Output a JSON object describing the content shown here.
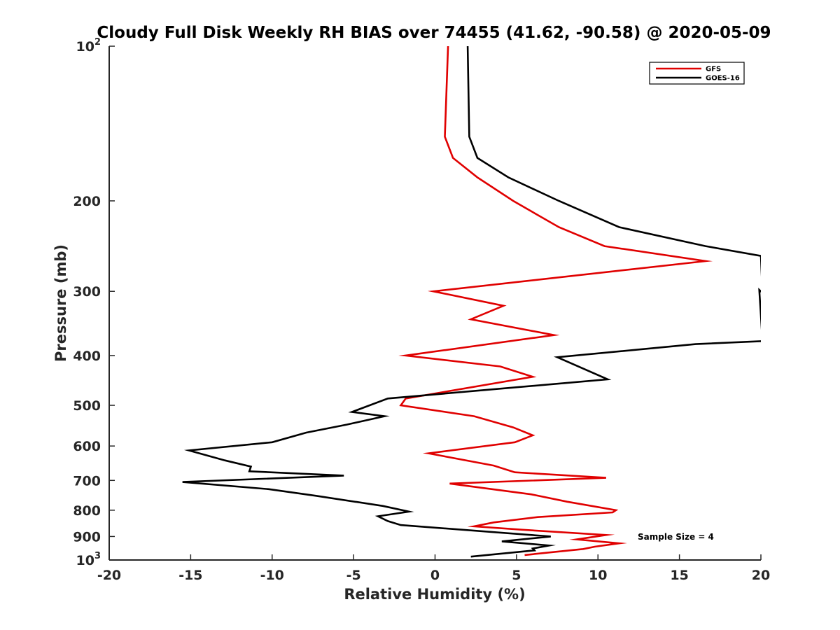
{
  "chart_data": {
    "type": "line",
    "title": "Cloudy Full Disk Weekly RH BIAS over 74455 (41.62, -90.58) @ 2020-05-09",
    "xlabel": "Relative Humidity (%)",
    "ylabel": "Pressure (mb)",
    "xlim": [
      -20,
      20
    ],
    "ylim": [
      100,
      1000
    ],
    "y_scale": "log",
    "y_reversed": true,
    "x_ticks": [
      "-20",
      "-15",
      "-10",
      "-5",
      "0",
      "5",
      "10",
      "15",
      "20"
    ],
    "y_ticks": [
      {
        "value": 100,
        "base": "10",
        "exp": "2"
      },
      {
        "value": 200,
        "base": "200",
        "exp": ""
      },
      {
        "value": 300,
        "base": "300",
        "exp": ""
      },
      {
        "value": 400,
        "base": "400",
        "exp": ""
      },
      {
        "value": 500,
        "base": "500",
        "exp": ""
      },
      {
        "value": 600,
        "base": "600",
        "exp": ""
      },
      {
        "value": 700,
        "base": "700",
        "exp": ""
      },
      {
        "value": 800,
        "base": "800",
        "exp": ""
      },
      {
        "value": 900,
        "base": "900",
        "exp": ""
      },
      {
        "value": 1000,
        "base": "10",
        "exp": "3"
      }
    ],
    "grid": false,
    "legend_position": "top-right",
    "annotation": "Sample Size = 4",
    "series": [
      {
        "name": "GFS",
        "color": "#e00000",
        "points": [
          [
            0.8,
            100
          ],
          [
            0.6,
            150
          ],
          [
            1.1,
            165
          ],
          [
            2.6,
            180
          ],
          [
            4.8,
            200
          ],
          [
            7.6,
            225
          ],
          [
            10.4,
            245
          ],
          [
            16.6,
            262
          ],
          [
            -0.1,
            300
          ],
          [
            4.2,
            320
          ],
          [
            2.2,
            340
          ],
          [
            7.3,
            365
          ],
          [
            -1.8,
            400
          ],
          [
            4.0,
            420
          ],
          [
            6.0,
            440
          ],
          [
            -1.8,
            485
          ],
          [
            -2.1,
            500
          ],
          [
            2.4,
            525
          ],
          [
            4.8,
            552
          ],
          [
            6.0,
            572
          ],
          [
            4.9,
            590
          ],
          [
            -0.4,
            620
          ],
          [
            3.6,
            655
          ],
          [
            4.9,
            675
          ],
          [
            10.5,
            692
          ],
          [
            0.9,
            710
          ],
          [
            5.9,
            745
          ],
          [
            8.1,
            770
          ],
          [
            11.1,
            800
          ],
          [
            10.9,
            808
          ],
          [
            6.3,
            825
          ],
          [
            3.6,
            845
          ],
          [
            2.4,
            860
          ],
          [
            5.3,
            873
          ],
          [
            10.5,
            894
          ],
          [
            8.7,
            912
          ],
          [
            11.3,
            928
          ],
          [
            9.8,
            942
          ],
          [
            9.1,
            952
          ],
          [
            5.5,
            978
          ]
        ]
      },
      {
        "name": "GOES-16",
        "color": "#000000",
        "points": [
          [
            2.0,
            100
          ],
          [
            2.1,
            150
          ],
          [
            2.6,
            165
          ],
          [
            4.5,
            180
          ],
          [
            7.6,
            200
          ],
          [
            11.3,
            225
          ],
          [
            16.6,
            245
          ],
          [
            20.0,
            256
          ],
          [
            20.1,
            302
          ],
          [
            19.9,
            298
          ],
          [
            20.1,
            375
          ],
          [
            16.0,
            380
          ],
          [
            7.5,
            403
          ],
          [
            10.6,
            445
          ],
          [
            -2.9,
            485
          ],
          [
            -5.1,
            515
          ],
          [
            -3.1,
            525
          ],
          [
            -5.4,
            545
          ],
          [
            -7.9,
            565
          ],
          [
            -10.0,
            590
          ],
          [
            -15.1,
            612
          ],
          [
            -12.9,
            640
          ],
          [
            -11.3,
            658
          ],
          [
            -11.4,
            672
          ],
          [
            -5.6,
            685
          ],
          [
            -15.5,
            705
          ],
          [
            -10.2,
            728
          ],
          [
            -7.3,
            750
          ],
          [
            -3.2,
            785
          ],
          [
            -1.6,
            805
          ],
          [
            -3.5,
            822
          ],
          [
            -2.9,
            840
          ],
          [
            -2.1,
            855
          ],
          [
            7.1,
            900
          ],
          [
            4.1,
            920
          ],
          [
            7.0,
            937
          ],
          [
            6.0,
            950
          ],
          [
            6.1,
            958
          ],
          [
            2.2,
            985
          ]
        ]
      }
    ]
  }
}
